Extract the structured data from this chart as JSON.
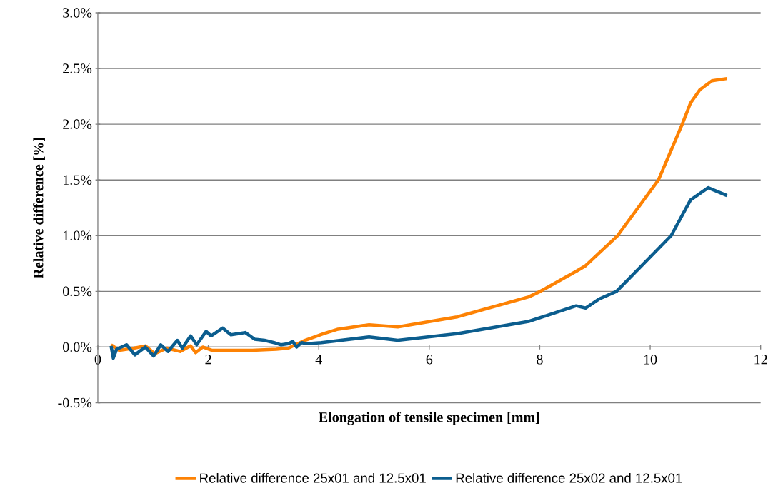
{
  "chart_data": {
    "type": "line",
    "xlabel": "Elongation of tensile specimen [mm]",
    "ylabel": "Relative difference [%]",
    "xlim": [
      0,
      12
    ],
    "xticks": [
      0,
      2,
      4,
      6,
      8,
      10,
      12
    ],
    "ylim": [
      -0.5,
      3.0
    ],
    "yticks": [
      {
        "value": -0.5,
        "label": "-0.5%"
      },
      {
        "value": 0,
        "label": "0.0%"
      },
      {
        "value": 0.5,
        "label": "0.5%"
      },
      {
        "value": 1.0,
        "label": "1.0%"
      },
      {
        "value": 1.5,
        "label": "1.5%"
      },
      {
        "value": 2.0,
        "label": "2.0%"
      },
      {
        "value": 2.5,
        "label": "2.5%"
      },
      {
        "value": 3.0,
        "label": "3.0%"
      }
    ],
    "grid": "y",
    "legend": "bottom",
    "marker": "none",
    "line_style": "solid",
    "series": [
      {
        "name": "Relative difference 25x01 and 12.5x01",
        "color": "#fd8204",
        "x": [
          0.24,
          0.39,
          0.65,
          0.86,
          1.03,
          1.25,
          1.49,
          1.68,
          1.77,
          1.9,
          2.07,
          2.37,
          2.8,
          3.23,
          3.45,
          3.58,
          3.75,
          4.09,
          4.35,
          4.91,
          5.43,
          6.5,
          7.8,
          8.01,
          8.66,
          8.83,
          9.41,
          10.15,
          10.58,
          10.73,
          10.9,
          11.12,
          11.39
        ],
        "values": [
          0.02,
          -0.03,
          -0.01,
          0.01,
          -0.06,
          -0.01,
          -0.04,
          0.01,
          -0.05,
          0,
          -0.03,
          -0.03,
          -0.03,
          -0.02,
          -0.01,
          0.02,
          0.06,
          0.12,
          0.16,
          0.2,
          0.18,
          0.27,
          0.45,
          0.5,
          0.68,
          0.73,
          1.0,
          1.5,
          2.0,
          2.19,
          2.31,
          2.39,
          2.41
        ]
      },
      {
        "name": "Relative difference 25x02 and 12.5x01",
        "color": "#0b5d8e",
        "x": [
          0.24,
          0.28,
          0.34,
          0.52,
          0.67,
          0.86,
          1.01,
          1.14,
          1.27,
          1.44,
          1.53,
          1.68,
          1.79,
          1.96,
          2.05,
          2.26,
          2.41,
          2.54,
          2.67,
          2.84,
          3.02,
          3.19,
          3.32,
          3.45,
          3.53,
          3.6,
          3.69,
          3.79,
          4.05,
          4.91,
          5.43,
          6.5,
          7.8,
          8.66,
          8.83,
          9.07,
          9.39,
          10.38,
          10.73,
          11.05,
          11.39
        ],
        "values": [
          0.01,
          -0.1,
          -0.02,
          0.02,
          -0.07,
          0,
          -0.08,
          0.02,
          -0.04,
          0.06,
          -0.01,
          0.1,
          0.02,
          0.14,
          0.1,
          0.17,
          0.11,
          0.12,
          0.13,
          0.07,
          0.06,
          0.04,
          0.02,
          0.03,
          0.05,
          0,
          0.04,
          0.03,
          0.04,
          0.09,
          0.06,
          0.12,
          0.23,
          0.37,
          0.35,
          0.43,
          0.5,
          1.0,
          1.32,
          1.43,
          1.36
        ]
      }
    ]
  }
}
